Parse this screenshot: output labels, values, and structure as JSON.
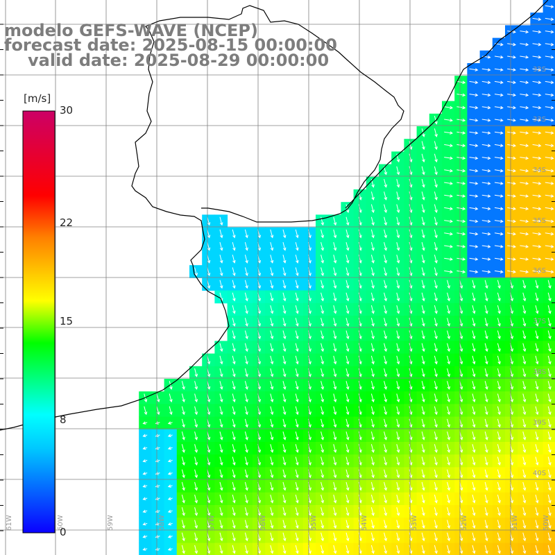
{
  "header": {
    "line1": "modelo GEFS-WAVE (NCEP)",
    "line2": "forecast date: 2025-08-15 00:00:00",
    "line3": "valid date: 2025-08-29 00:00:00"
  },
  "colorbar": {
    "unit": "[m/s]",
    "ticks": [
      "30",
      "22",
      "15",
      "8",
      "0"
    ],
    "tick_values": [
      30,
      22,
      15,
      8,
      0
    ],
    "range": [
      0,
      30
    ],
    "colors": [
      "#0a00ff",
      "#00c8ff",
      "#00ffff",
      "#00ff00",
      "#ffff00",
      "#ff8000",
      "#ff0000",
      "#cc0066"
    ]
  },
  "grid": {
    "lat_labels": [
      "32S",
      "33S",
      "34S",
      "35S",
      "36S",
      "37S",
      "38S",
      "39S",
      "40S"
    ],
    "lon_labels": [
      "61W",
      "60W",
      "59W",
      "58W",
      "57W",
      "56W",
      "55W",
      "54W",
      "53W",
      "52W",
      "51W",
      "50W"
    ]
  },
  "colors": {
    "land": "#ffffff",
    "coast": "#000000",
    "grid": "#808080",
    "arrow": "#ffffff",
    "title": "#7d7d7d"
  }
}
